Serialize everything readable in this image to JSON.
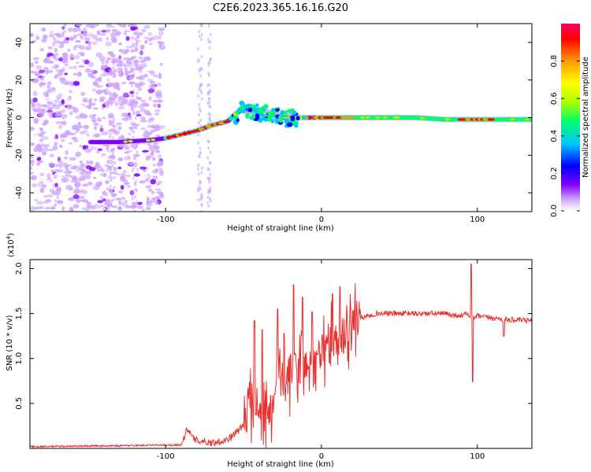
{
  "title": "C2E6.2023.365.16.16.G20",
  "chart_data": [
    {
      "type": "heatmap",
      "xlabel": "Height of straight line (km)",
      "ylabel": "Frequency (Hz)",
      "xlim": [
        -187,
        135
      ],
      "ylim": [
        -50,
        50
      ],
      "x_ticks": [
        -100,
        0,
        100
      ],
      "y_ticks": [
        -40,
        -20,
        0,
        20,
        40
      ],
      "colorbar": {
        "label": "Normalized spectral amplitude",
        "range": [
          0,
          1
        ],
        "ticks": [
          0.0,
          0.2,
          0.4,
          0.6,
          0.8
        ],
        "colors": [
          "#ffffff",
          "#cfa6ff",
          "#8000ff",
          "#0000ff",
          "#00c8ff",
          "#00ff66",
          "#aaff00",
          "#ffff00",
          "#ff9900",
          "#ff0000",
          "#ff0066"
        ]
      },
      "ridge": {
        "x": [
          -145,
          -130,
          -110,
          -100,
          -90,
          -80,
          -70,
          -60,
          -55,
          -50,
          -45,
          -40,
          -35,
          -30,
          -25,
          -20,
          -10,
          0,
          20,
          40,
          60,
          80,
          100,
          120,
          135
        ],
        "y": [
          -13,
          -13,
          -12,
          -11,
          -9,
          -7,
          -4,
          -2,
          2,
          5,
          4,
          3,
          2,
          1,
          0,
          0,
          0,
          0,
          0,
          0,
          0,
          -1,
          -1,
          -1,
          -1
        ]
      }
    },
    {
      "type": "line",
      "xlabel": "Height of straight line (km)",
      "ylabel": "SNR (10 * v/v)",
      "y_multiplier": "(x10",
      "y_multiplier_exp": "4",
      "y_multiplier_close": ")",
      "xlim": [
        -187,
        135
      ],
      "ylim": [
        0,
        2.1
      ],
      "x_ticks": [
        -100,
        0,
        100
      ],
      "y_ticks": [
        0.5,
        1.0,
        1.5,
        2.0
      ],
      "color": "#e8302f",
      "envelope": {
        "x": [
          -187,
          -130,
          -90,
          -86,
          -82,
          -70,
          -60,
          -50,
          -45,
          -40,
          -35,
          -30,
          -25,
          -20,
          -15,
          -10,
          -5,
          0,
          5,
          10,
          15,
          20,
          25,
          30,
          35,
          40,
          50,
          60,
          70,
          80,
          85,
          90,
          94,
          96,
          98,
          100,
          110,
          115,
          120,
          135
        ],
        "y": [
          0.02,
          0.03,
          0.04,
          0.22,
          0.1,
          0.06,
          0.1,
          0.25,
          0.55,
          0.5,
          0.3,
          0.5,
          0.75,
          0.85,
          0.9,
          0.95,
          0.95,
          1.1,
          1.15,
          1.2,
          1.3,
          1.4,
          1.45,
          1.48,
          1.5,
          1.5,
          1.5,
          1.5,
          1.5,
          1.5,
          1.48,
          1.48,
          1.5,
          1.45,
          1.45,
          1.47,
          1.45,
          1.44,
          1.43,
          1.42
        ]
      },
      "peaks": [
        {
          "x": -43,
          "y": 1.42
        },
        {
          "x": -38,
          "y": 1.32
        },
        {
          "x": -28,
          "y": 1.55
        },
        {
          "x": -24,
          "y": 1.28
        },
        {
          "x": -18,
          "y": 1.82
        },
        {
          "x": -12,
          "y": 1.68
        },
        {
          "x": -6,
          "y": 1.52
        },
        {
          "x": 7,
          "y": 1.72
        },
        {
          "x": 12,
          "y": 1.8
        },
        {
          "x": 96,
          "y": 2.05
        },
        {
          "x": 97,
          "y": 0.74
        },
        {
          "x": 117,
          "y": 1.25
        }
      ]
    }
  ]
}
